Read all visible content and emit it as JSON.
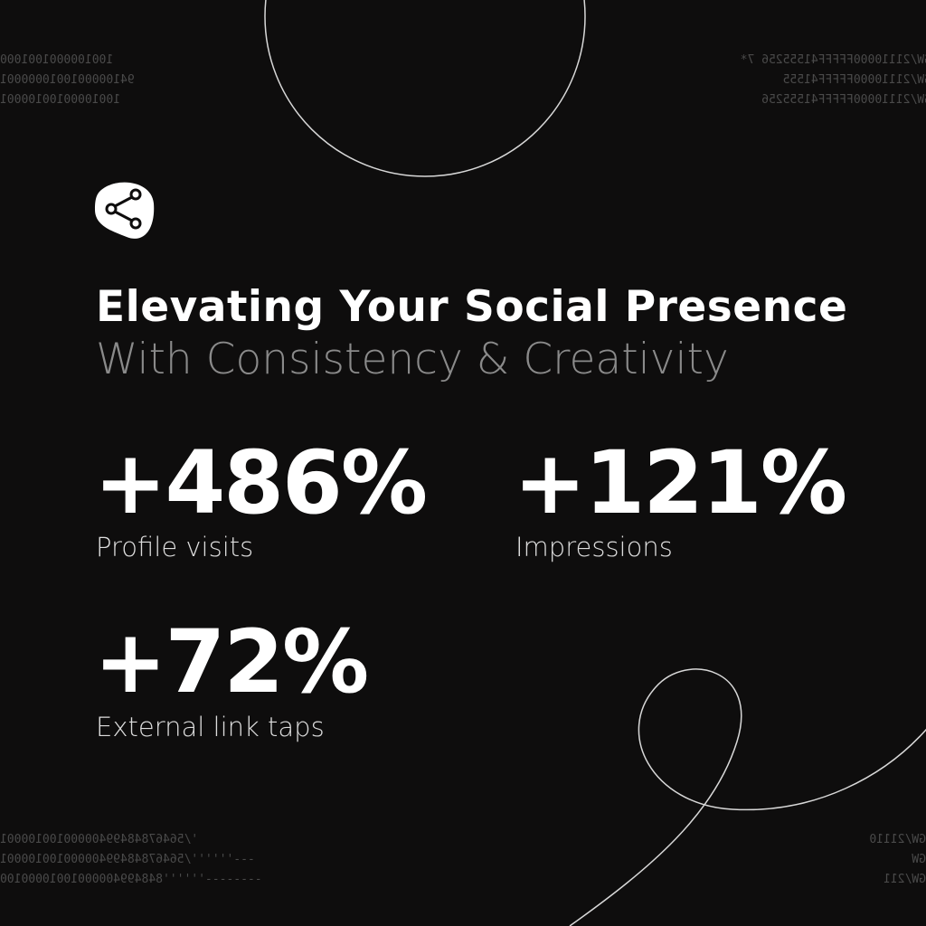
{
  "header": {
    "title": "Elevating Your Social Presence",
    "subtitle": "With Consistency & Creativity"
  },
  "stats": [
    {
      "value": "+486%",
      "label": "Profile visits"
    },
    {
      "value": "+121%",
      "label": "Impressions"
    },
    {
      "value": "+72%",
      "label": "External link taps"
    }
  ],
  "decor_text": {
    "top_left": [
      "1001000001001000",
      "9410000010010000001",
      "10010000100100001"
    ],
    "top_right": [
      "GW/21110000FFFFF41555256 7*",
      "GW/21110000FFFFF41555",
      "GW/21110000FFFFF41555256"
    ],
    "bottom_left": [
      "'/56467848499400000100100001",
      "---''''''/56467848499400000100100001",
      "--------''''''84849940000010010000100"
    ],
    "bottom_right": [
      "GW/21110",
      "GW",
      "GW/211"
    ]
  }
}
